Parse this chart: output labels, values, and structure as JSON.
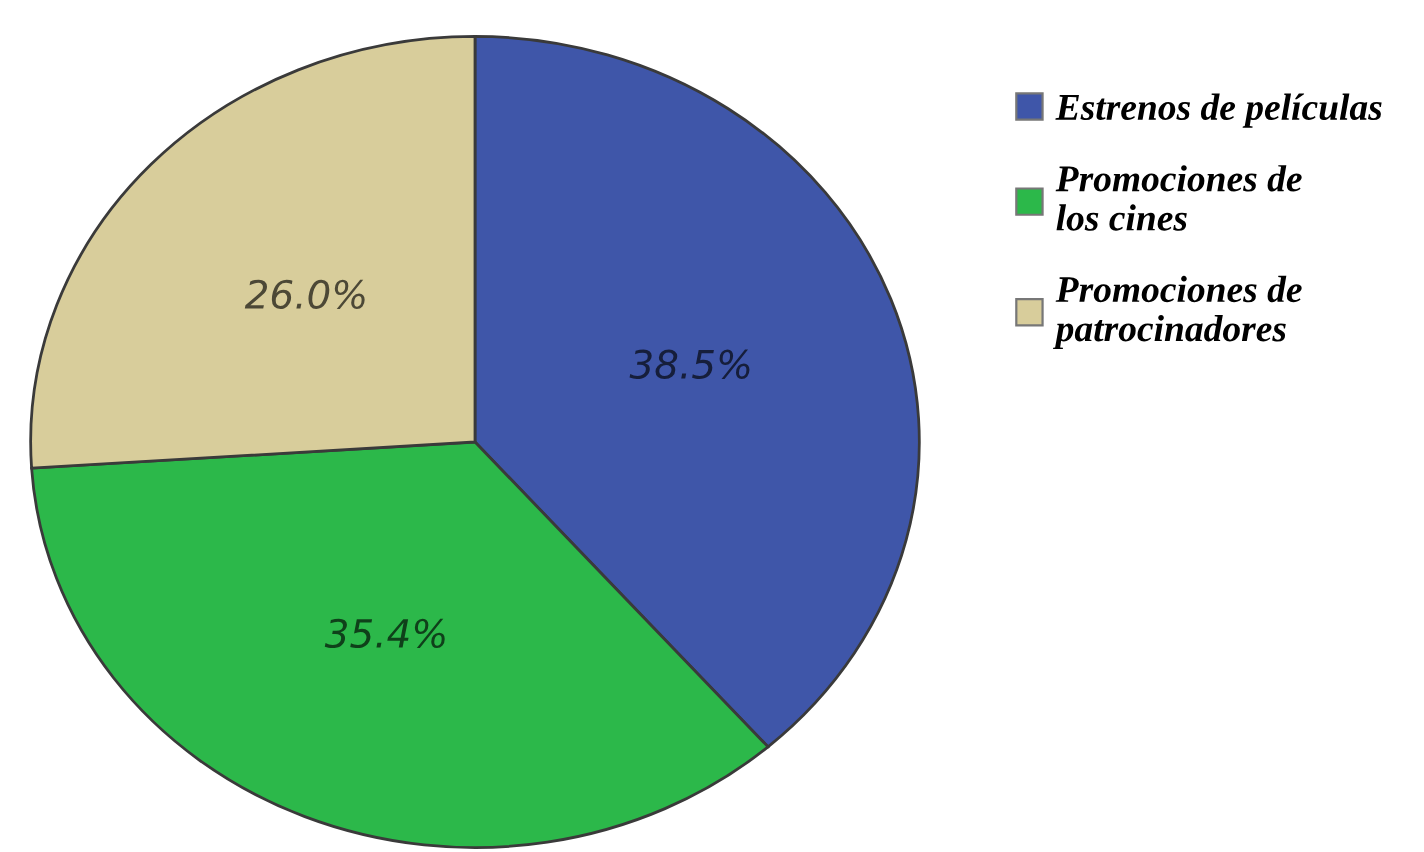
{
  "chart_data": {
    "type": "pie",
    "categories": [
      "Estrenos de películas",
      "Promociones de\nlos cines",
      "Promociones de\npatrocinadores"
    ],
    "values": [
      38.5,
      35.4,
      26.0
    ],
    "colors": [
      "#3f56a9",
      "#2cb84a",
      "#d8cd9b"
    ],
    "value_labels": [
      "38.5%",
      "35.4%",
      "26.0%"
    ],
    "legend": "right"
  }
}
